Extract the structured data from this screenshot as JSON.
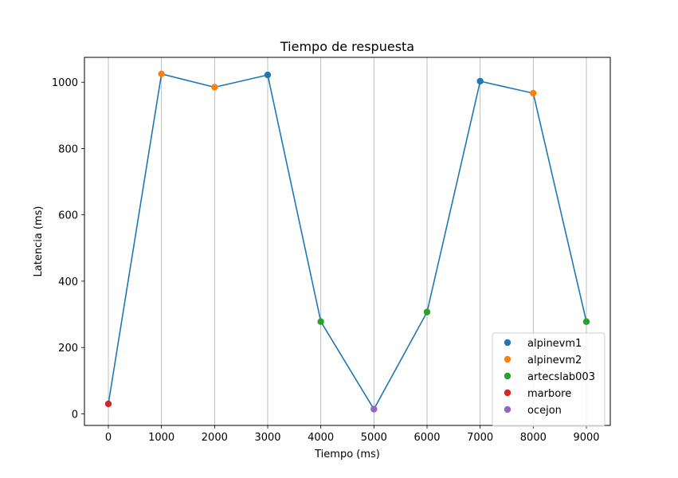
{
  "chart_data": {
    "type": "line",
    "title": "Tiempo de respuesta",
    "xlabel": "Tiempo (ms)",
    "ylabel": "Latencia (ms)",
    "xlim": [
      -450,
      9450
    ],
    "ylim": [
      -35,
      1075
    ],
    "x_ticks": [
      0,
      1000,
      2000,
      3000,
      4000,
      5000,
      6000,
      7000,
      8000,
      9000
    ],
    "y_ticks": [
      0,
      200,
      400,
      600,
      800,
      1000
    ],
    "grid": "vertical",
    "line_color": "#1f77b4",
    "legend_position": "lower-right",
    "groups": [
      {
        "name": "alpinevm1",
        "color": "#1f77b4"
      },
      {
        "name": "alpinevm2",
        "color": "#ff7f0e"
      },
      {
        "name": "artecslab003",
        "color": "#2ca02c"
      },
      {
        "name": "marbore",
        "color": "#d62728"
      },
      {
        "name": "ocejon",
        "color": "#9467bd"
      }
    ],
    "points": [
      {
        "x": 0,
        "y": 30,
        "group": "marbore"
      },
      {
        "x": 1000,
        "y": 1025,
        "group": "alpinevm2"
      },
      {
        "x": 2000,
        "y": 985,
        "group": "alpinevm2"
      },
      {
        "x": 3000,
        "y": 1022,
        "group": "alpinevm1"
      },
      {
        "x": 4000,
        "y": 278,
        "group": "artecslab003"
      },
      {
        "x": 5000,
        "y": 14,
        "group": "ocejon"
      },
      {
        "x": 6000,
        "y": 307,
        "group": "artecslab003"
      },
      {
        "x": 7000,
        "y": 1003,
        "group": "alpinevm1"
      },
      {
        "x": 8000,
        "y": 967,
        "group": "alpinevm2"
      },
      {
        "x": 9000,
        "y": 278,
        "group": "artecslab003"
      }
    ]
  }
}
